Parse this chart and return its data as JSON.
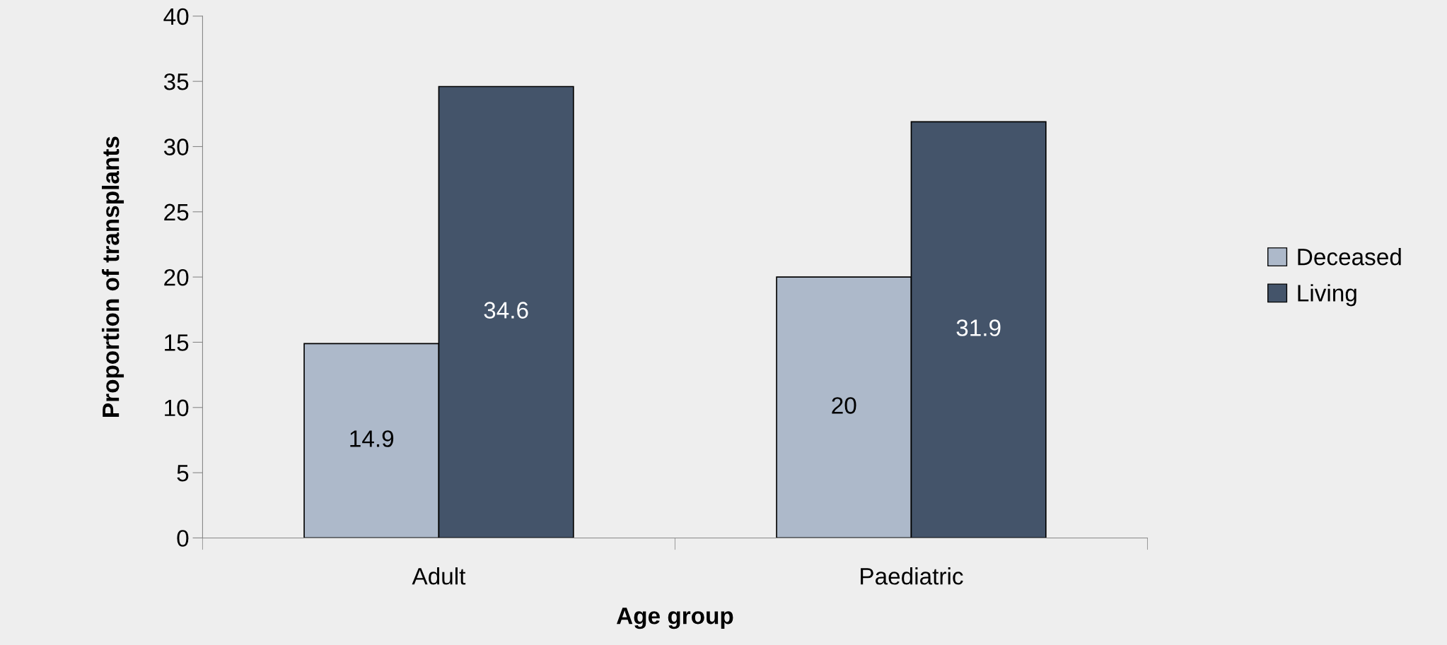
{
  "chart_data": {
    "type": "bar",
    "xlabel": "Age group",
    "ylabel": "Proportion of transplants",
    "categories": [
      "Adult",
      "Paediatric"
    ],
    "series": [
      {
        "name": "Deceased",
        "color": "#adb9ca",
        "values": [
          14.9,
          20
        ]
      },
      {
        "name": "Living",
        "color": "#44546a",
        "values": [
          34.6,
          31.9
        ]
      }
    ],
    "ylim": [
      0,
      40
    ],
    "yticks": [
      0,
      5,
      10,
      15,
      20,
      25,
      30,
      35,
      40
    ],
    "grid": false,
    "legend": "right",
    "data_labels": true
  }
}
